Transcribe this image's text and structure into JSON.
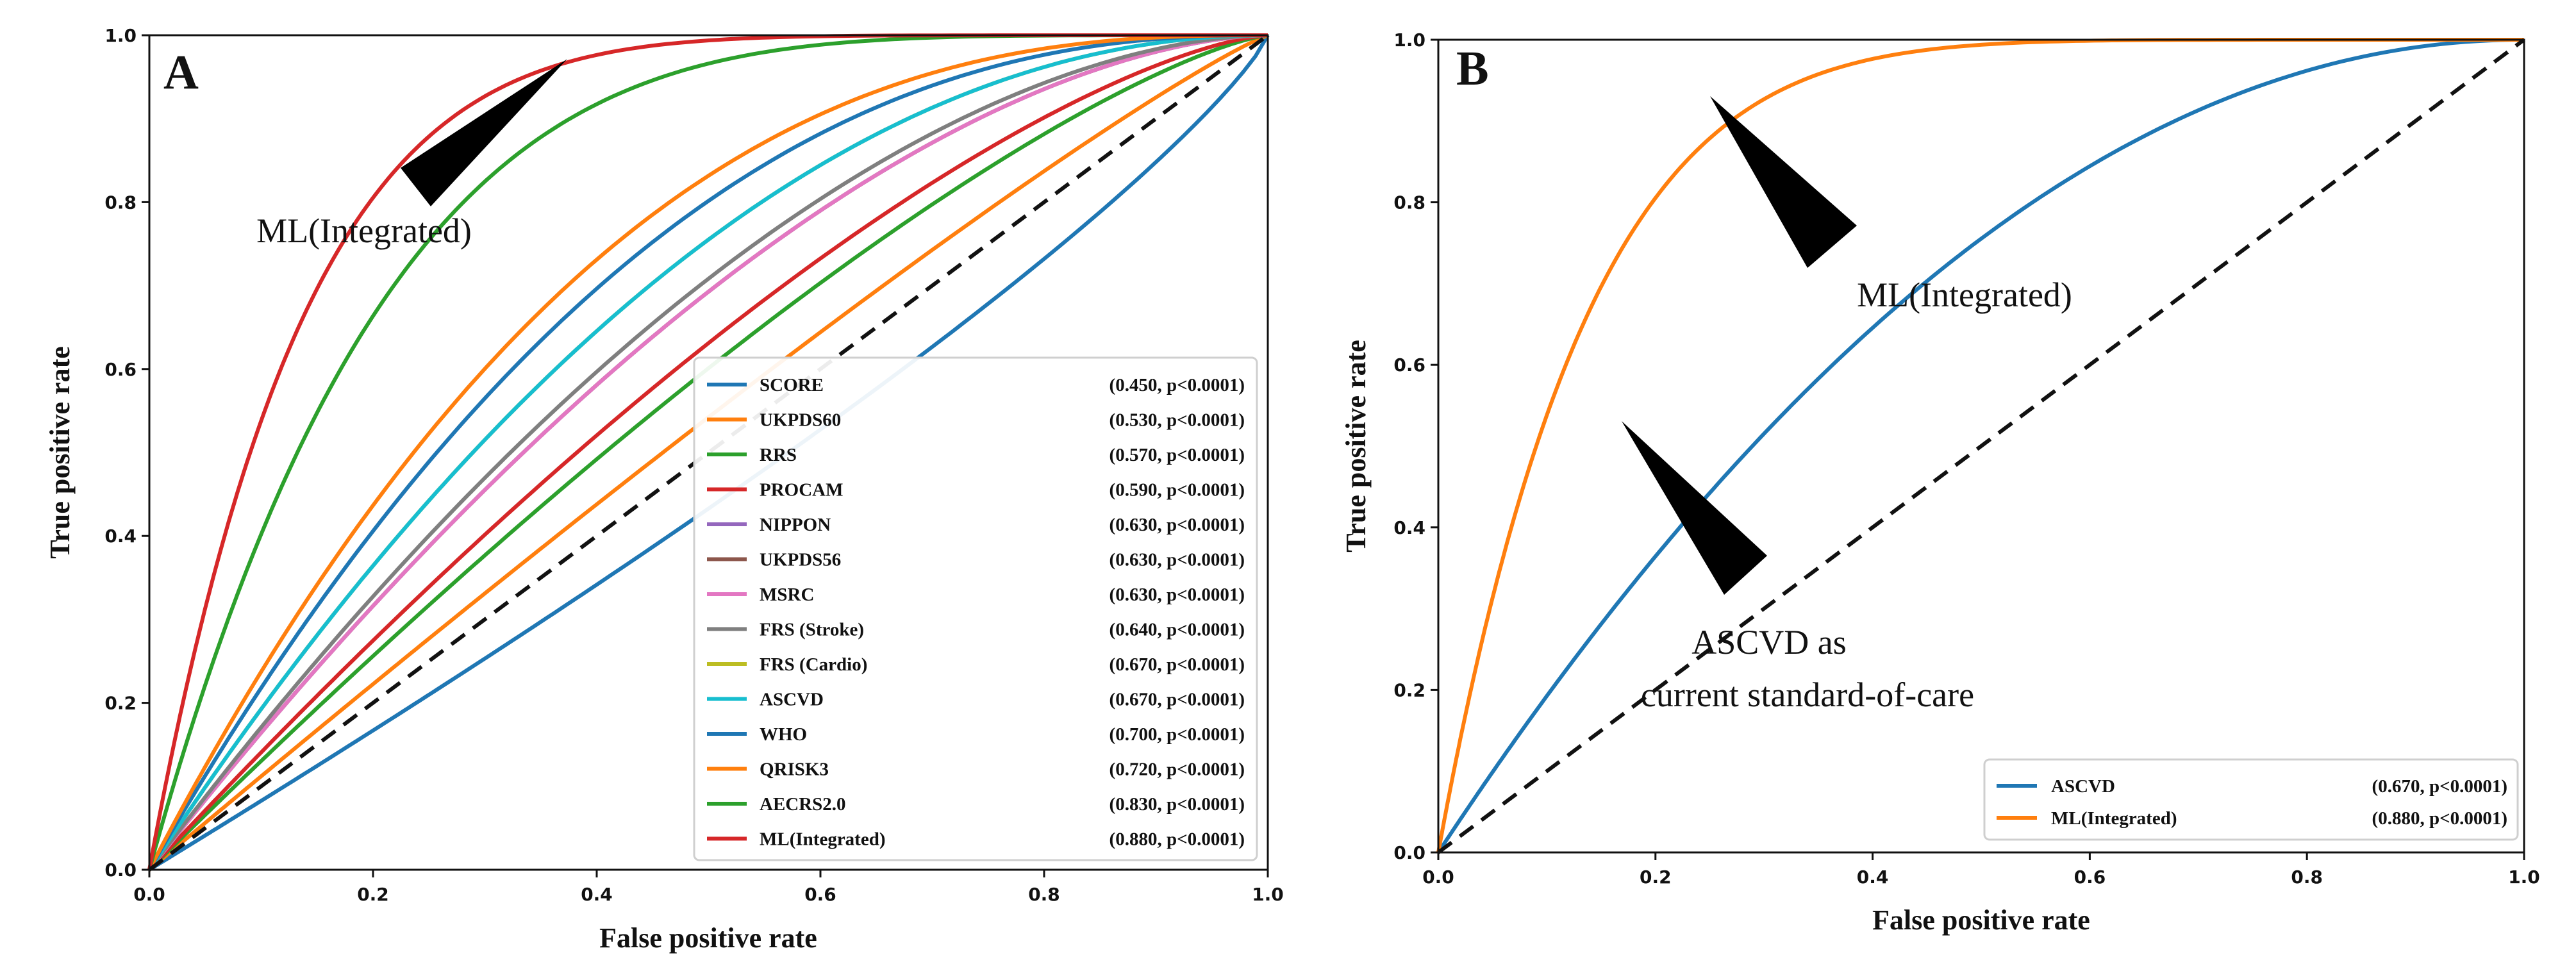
{
  "chart_data": [
    {
      "type": "line",
      "panel_label": "A",
      "xlabel": "False positive rate",
      "ylabel": "True positive rate",
      "xlim": [
        0,
        1
      ],
      "ylim": [
        0,
        1
      ],
      "xticks": [
        "0.0",
        "0.2",
        "0.4",
        "0.6",
        "0.8",
        "1.0"
      ],
      "yticks": [
        "0.0",
        "0.2",
        "0.4",
        "0.6",
        "0.8",
        "1.0"
      ],
      "grid": false,
      "legend_position": "lower-right",
      "reference_line": {
        "style": "dashed",
        "color": "#111111",
        "points": [
          [
            0,
            0
          ],
          [
            1,
            1
          ]
        ]
      },
      "series": [
        {
          "name": "SCORE",
          "stat": "(0.450, p<0.0001)",
          "auc": 0.45,
          "color": "#1f77b4"
        },
        {
          "name": "UKPDS60",
          "stat": "(0.530, p<0.0001)",
          "auc": 0.53,
          "color": "#ff7f0e"
        },
        {
          "name": "RRS",
          "stat": "(0.570, p<0.0001)",
          "auc": 0.57,
          "color": "#2ca02c"
        },
        {
          "name": "PROCAM",
          "stat": "(0.590, p<0.0001)",
          "auc": 0.59,
          "color": "#d62728"
        },
        {
          "name": "NIPPON",
          "stat": "(0.630, p<0.0001)",
          "auc": 0.63,
          "color": "#9467bd"
        },
        {
          "name": "UKPDS56",
          "stat": "(0.630, p<0.0001)",
          "auc": 0.63,
          "color": "#8c564b"
        },
        {
          "name": "MSRC",
          "stat": "(0.630, p<0.0001)",
          "auc": 0.63,
          "color": "#e377c2"
        },
        {
          "name": "FRS (Stroke)",
          "stat": "(0.640, p<0.0001)",
          "auc": 0.64,
          "color": "#7f7f7f"
        },
        {
          "name": "FRS (Cardio)",
          "stat": "(0.670, p<0.0001)",
          "auc": 0.67,
          "color": "#bcbd22"
        },
        {
          "name": "ASCVD",
          "stat": "(0.670, p<0.0001)",
          "auc": 0.67,
          "color": "#17becf"
        },
        {
          "name": "WHO",
          "stat": "(0.700, p<0.0001)",
          "auc": 0.7,
          "color": "#1f77b4"
        },
        {
          "name": "QRISK3",
          "stat": "(0.720, p<0.0001)",
          "auc": 0.72,
          "color": "#ff7f0e"
        },
        {
          "name": "AECRS2.0",
          "stat": "(0.830, p<0.0001)",
          "auc": 0.83,
          "color": "#2ca02c"
        },
        {
          "name": "ML(Integrated)",
          "stat": "(0.880, p<0.0001)",
          "auc": 0.88,
          "color": "#d62728"
        }
      ],
      "annotations": [
        {
          "text": "ML(Integrated)",
          "points_to": [
            0.37,
            0.97
          ]
        }
      ]
    },
    {
      "type": "line",
      "panel_label": "B",
      "xlabel": "False positive rate",
      "ylabel": "True positive rate",
      "xlim": [
        0,
        1
      ],
      "ylim": [
        0,
        1
      ],
      "xticks": [
        "0.0",
        "0.2",
        "0.4",
        "0.6",
        "0.8",
        "1.0"
      ],
      "yticks": [
        "0.0",
        "0.2",
        "0.4",
        "0.6",
        "0.8",
        "1.0"
      ],
      "grid": false,
      "legend_position": "lower-right",
      "reference_line": {
        "style": "dashed",
        "color": "#111111",
        "points": [
          [
            0,
            0
          ],
          [
            1,
            1
          ]
        ]
      },
      "series": [
        {
          "name": "ASCVD",
          "stat": "(0.670, p<0.0001)",
          "auc": 0.67,
          "color": "#1f77b4"
        },
        {
          "name": "ML(Integrated)",
          "stat": "(0.880, p<0.0001)",
          "auc": 0.88,
          "color": "#ff7f0e"
        }
      ],
      "annotations": [
        {
          "text": "ML(Integrated)",
          "points_to": [
            0.25,
            0.94
          ]
        },
        {
          "text": "ASCVD as",
          "text2": "current standard-of-care",
          "points_to": [
            0.17,
            0.53
          ]
        }
      ]
    }
  ]
}
